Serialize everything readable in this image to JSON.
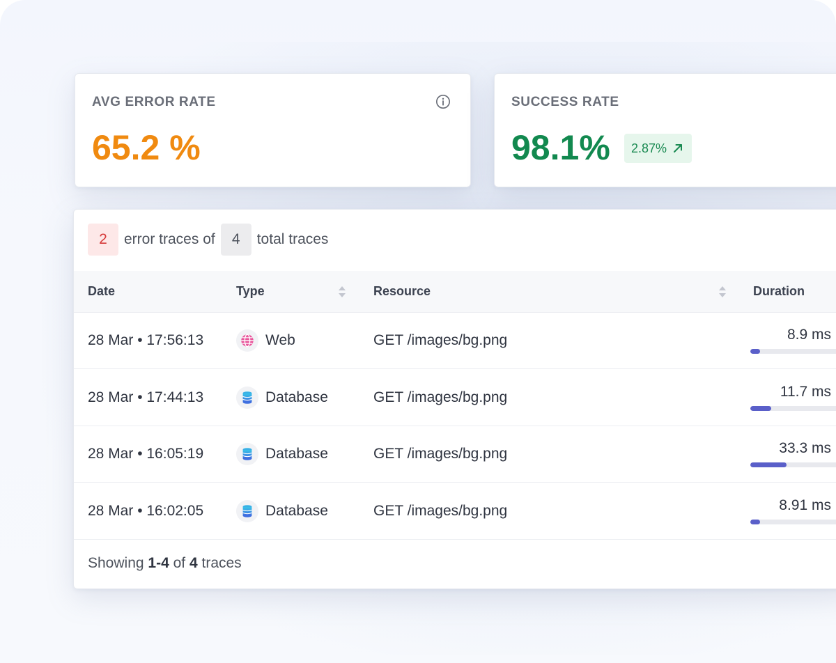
{
  "metrics": {
    "error": {
      "label": "AVG ERROR RATE",
      "value": "65.2 %",
      "color": "#f08a10",
      "info_icon": "info-icon"
    },
    "success": {
      "label": "SUCCESS RATE",
      "value": "98.1%",
      "color": "#12894f",
      "trend": "2.87%",
      "trend_icon": "arrow-up-right-icon"
    }
  },
  "summary": {
    "error_count": "2",
    "text_mid": "error traces of",
    "total_count": "4",
    "text_end": "total traces"
  },
  "table": {
    "columns": {
      "date": "Date",
      "type": "Type",
      "resource": "Resource",
      "duration": "Duration"
    },
    "rows": [
      {
        "date": "28 Mar • 17:56:13",
        "type": "Web",
        "type_icon": "globe-icon",
        "resource": "GET /images/bg.png",
        "duration": "8.9 ms",
        "duration_fraction": 0.11
      },
      {
        "date": "28 Mar • 17:44:13",
        "type": "Database",
        "type_icon": "database-icon",
        "resource": "GET /images/bg.png",
        "duration": "11.7 ms",
        "duration_fraction": 0.23
      },
      {
        "date": "28 Mar • 16:05:19",
        "type": "Database",
        "type_icon": "database-icon",
        "resource": "GET /images/bg.png",
        "duration": "33.3 ms",
        "duration_fraction": 0.4
      },
      {
        "date": "28 Mar • 16:02:05",
        "type": "Database",
        "type_icon": "database-icon",
        "resource": "GET /images/bg.png",
        "duration": "8.91 ms",
        "duration_fraction": 0.11
      }
    ]
  },
  "footer": {
    "prefix": "Showing",
    "range": "1-4",
    "of": "of",
    "total": "4",
    "suffix": "traces"
  },
  "colors": {
    "accent_bar": "#5a5fc9",
    "error_chip_bg": "#fde8e8",
    "error_chip_text": "#d63b3b",
    "trend_bg": "#e6f6ec"
  }
}
